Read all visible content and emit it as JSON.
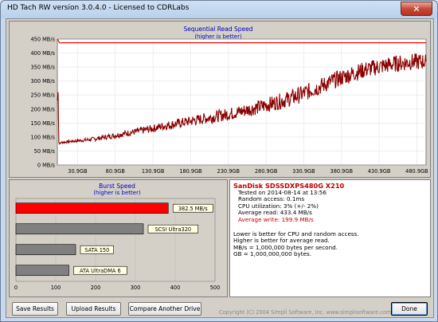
{
  "window": {
    "title": "HD Tach RW version 3.0.4.0 - Licensed to CDRLabs",
    "close_glyph": "✕"
  },
  "chart_data": [
    {
      "type": "line",
      "title": "Sequential Read Speed",
      "subtitle": "(higher is better)",
      "y_unit": "MB/s",
      "ylim": [
        0,
        450
      ],
      "yticks": [
        "450 MB/s",
        "400 MB/s",
        "350 MB/s",
        "300 MB/s",
        "250 MB/s",
        "200 MB/s",
        "150 MB/s",
        "100 MB/s",
        "50 MB/s",
        "0 MB/s"
      ],
      "xticks": [
        "30.9GB",
        "80.9GB",
        "130.9GB",
        "180.9GB",
        "230.9GB",
        "280.9GB",
        "330.9GB",
        "380.9GB",
        "430.9GB",
        "480.9GB"
      ],
      "xlim_gb": [
        10,
        490
      ],
      "grid": true,
      "series": [
        {
          "color": "#ff0000",
          "x": [
            10,
            13,
            20,
            60,
            110,
            170,
            230,
            290,
            350,
            410,
            470,
            490
          ],
          "y": [
            450,
            436,
            437,
            437,
            437,
            437,
            437,
            437,
            437,
            437,
            437,
            437
          ]
        },
        {
          "color": "#8b0000",
          "x": [
            10,
            11,
            12,
            13,
            14,
            30,
            50,
            70,
            90,
            110,
            130,
            150,
            170,
            190,
            210,
            230,
            250,
            270,
            290,
            310,
            330,
            350,
            370,
            390,
            410,
            430,
            450,
            470,
            490
          ],
          "y": [
            230,
            260,
            80,
            75,
            80,
            85,
            90,
            98,
            108,
            118,
            128,
            140,
            150,
            160,
            170,
            180,
            192,
            205,
            220,
            235,
            255,
            278,
            302,
            322,
            340,
            352,
            362,
            368,
            370
          ]
        }
      ]
    },
    {
      "type": "bar",
      "title": "Burst Speed",
      "subtitle": "(higher is better)",
      "xlim": [
        0,
        500
      ],
      "xticks": [
        "0",
        "100",
        "200",
        "300",
        "400",
        "500"
      ],
      "categories": [
        "SanDisk SDSSDXPS480G X210",
        "SCSI Ultra320",
        "SATA 150",
        "ATA UltraDMA 6"
      ],
      "values": [
        382.5,
        320,
        150,
        133
      ],
      "labels": [
        "382.5 MB/s",
        "SCSI Ultra320",
        "SATA 150",
        "ATA UltraDMA 6"
      ],
      "colors": [
        "#ff0000",
        "#808080",
        "#808080",
        "#808080"
      ]
    }
  ],
  "results": {
    "drive": "SanDisk SDSSDXPS480G X210",
    "tested_on": "Tested on 2014-08-14 at 13:56",
    "random_access": "Random access: 0.1ms",
    "cpu": "CPU utilization: 3% (+/- 2%)",
    "avg_read": "Average read: 433.4 MB/s",
    "avg_write": "Average write: 199.9 MB/s",
    "note1": "Lower is better for CPU and random access.",
    "note2": "Higher is better for average read.",
    "note3": "MB/s = 1,000,000 bytes per second.",
    "note4": "GB = 1,000,000,000 bytes."
  },
  "buttons": {
    "save": "Save Results",
    "upload": "Upload Results",
    "compare": "Compare Another Drive",
    "done": "Done"
  },
  "copyright": "Copyright (C) 2004 Simpli Software, Inc. www.simplisoftware.com"
}
